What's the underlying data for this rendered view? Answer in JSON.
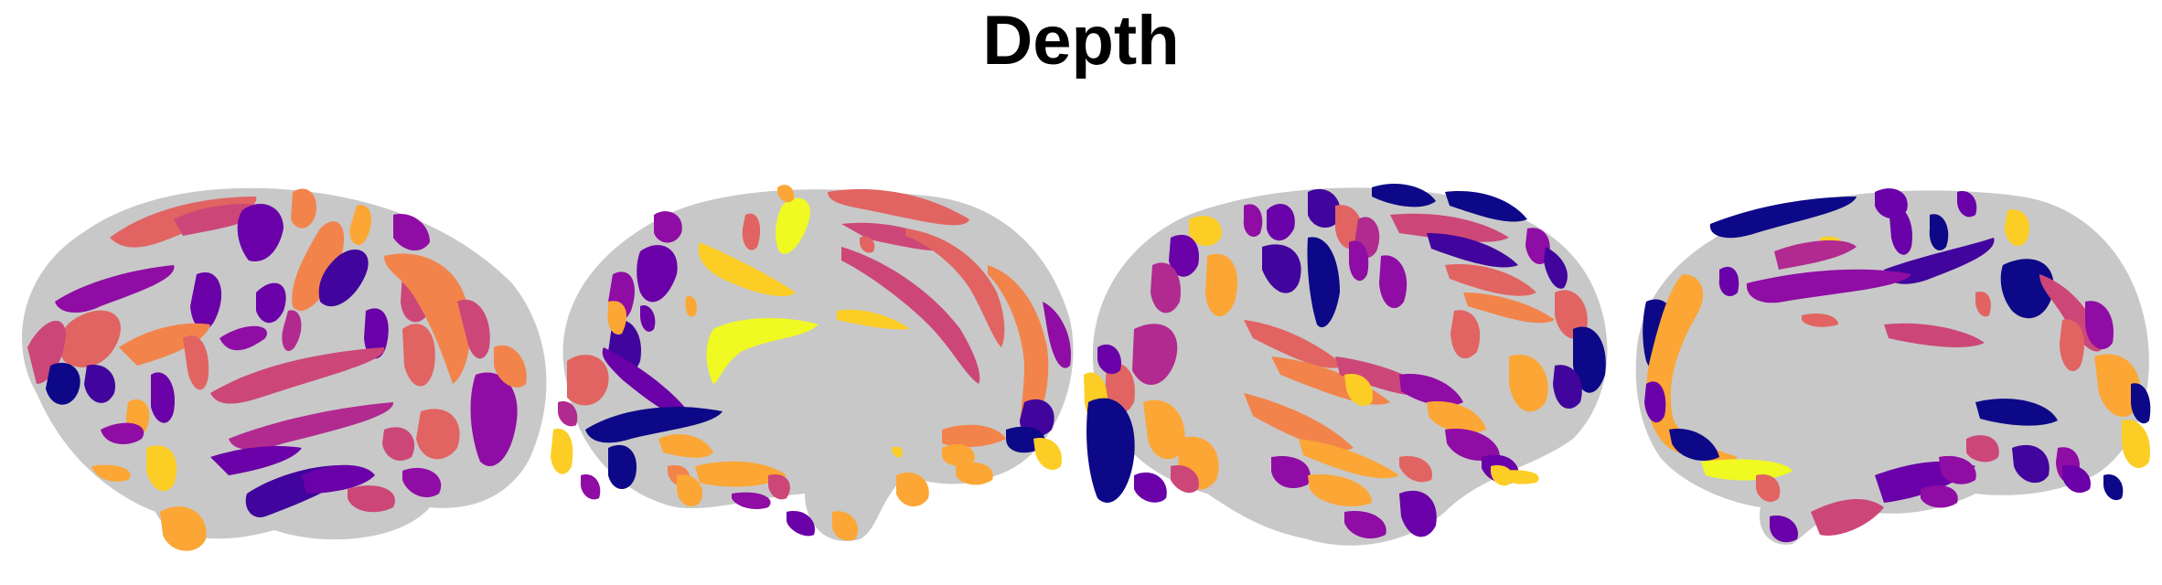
{
  "title": "Depth",
  "colormap": [
    "#0d0887",
    "#41049d",
    "#6a00a8",
    "#8f0da4",
    "#b12a90",
    "#cc4778",
    "#e16462",
    "#f2844b",
    "#fca636",
    "#fcce25",
    "#f0f921"
  ],
  "surface_color": "#c8c8c8",
  "views": [
    {
      "id": "left-lateral"
    },
    {
      "id": "left-medial"
    },
    {
      "id": "right-lateral"
    },
    {
      "id": "right-medial"
    }
  ]
}
